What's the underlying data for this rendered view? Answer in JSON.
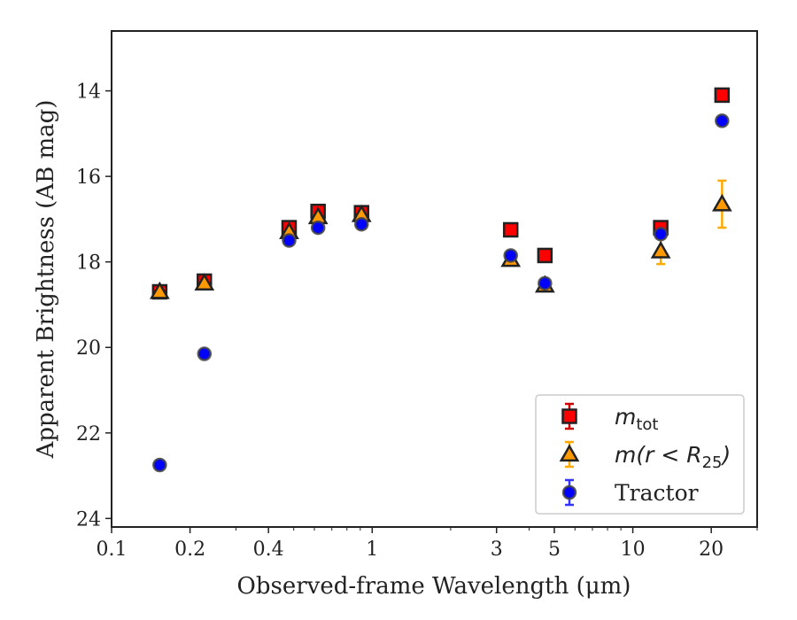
{
  "chart_data": {
    "type": "scatter",
    "xscale": "log",
    "yinverted": true,
    "xlim": [
      0.1,
      30
    ],
    "ylim": [
      12.6,
      24.2
    ],
    "xlabel": "Observed-frame Wavelength (μm)",
    "ylabel": "Apparent Brightness (AB mag)",
    "xticks": [
      {
        "value": 0.1,
        "label": "0.1"
      },
      {
        "value": 0.2,
        "label": "0.2"
      },
      {
        "value": 0.4,
        "label": "0.4"
      },
      {
        "value": 1,
        "label": "1"
      },
      {
        "value": 3,
        "label": "3"
      },
      {
        "value": 5,
        "label": "5"
      },
      {
        "value": 10,
        "label": "10"
      },
      {
        "value": 20,
        "label": "20"
      }
    ],
    "yticks": [
      {
        "value": 14,
        "label": "14"
      },
      {
        "value": 16,
        "label": "16"
      },
      {
        "value": 18,
        "label": "18"
      },
      {
        "value": 20,
        "label": "20"
      },
      {
        "value": 22,
        "label": "22"
      },
      {
        "value": 24,
        "label": "24"
      }
    ],
    "legend_position": "lower-right",
    "series": [
      {
        "name": "m_tot",
        "legend_main": "m",
        "legend_sub": "tot",
        "marker": "square",
        "color": "#ff0000",
        "edge_color": "#222222",
        "errorbar_color": "#cc0000",
        "points": [
          {
            "x": 0.153,
            "y": 18.7,
            "err": 0.06
          },
          {
            "x": 0.227,
            "y": 18.45,
            "err": 0.05
          },
          {
            "x": 0.48,
            "y": 17.2,
            "err": 0.05
          },
          {
            "x": 0.62,
            "y": 16.82,
            "err": 0.05
          },
          {
            "x": 0.91,
            "y": 16.85,
            "err": 0.05
          },
          {
            "x": 3.4,
            "y": 17.25,
            "err": 0.04
          },
          {
            "x": 4.6,
            "y": 17.85,
            "err": 0.04
          },
          {
            "x": 12.8,
            "y": 17.2,
            "err": 0.05
          },
          {
            "x": 22.0,
            "y": 14.1,
            "err": 0.05
          }
        ]
      },
      {
        "name": "m(r < R_25)",
        "legend_main": "m(r < R",
        "legend_sub": "25",
        "legend_tail": ")",
        "marker": "triangle",
        "color": "#ff9900",
        "edge_color": "#222222",
        "errorbar_color": "#ffaa00",
        "points": [
          {
            "x": 0.153,
            "y": 18.7,
            "err": 0.06
          },
          {
            "x": 0.227,
            "y": 18.5,
            "err": 0.05
          },
          {
            "x": 0.48,
            "y": 17.3,
            "err": 0.05
          },
          {
            "x": 0.62,
            "y": 16.95,
            "err": 0.05
          },
          {
            "x": 0.91,
            "y": 16.9,
            "err": 0.05
          },
          {
            "x": 3.4,
            "y": 17.95,
            "err": 0.05
          },
          {
            "x": 4.6,
            "y": 18.55,
            "err": 0.05
          },
          {
            "x": 12.8,
            "y": 17.75,
            "err": 0.3
          },
          {
            "x": 22.0,
            "y": 16.65,
            "err": 0.55
          }
        ]
      },
      {
        "name": "Tractor",
        "legend_main": "Tractor",
        "marker": "circle",
        "color": "#0000ff",
        "edge_color": "#444444",
        "errorbar_color": "#3333ff",
        "points": [
          {
            "x": 0.153,
            "y": 22.75,
            "err": 0.05
          },
          {
            "x": 0.227,
            "y": 20.15,
            "err": 0.05
          },
          {
            "x": 0.48,
            "y": 17.5,
            "err": 0.05
          },
          {
            "x": 0.62,
            "y": 17.2,
            "err": 0.05
          },
          {
            "x": 0.91,
            "y": 17.12,
            "err": 0.05
          },
          {
            "x": 3.4,
            "y": 17.85,
            "err": 0.05
          },
          {
            "x": 4.6,
            "y": 18.5,
            "err": 0.05
          },
          {
            "x": 12.8,
            "y": 17.35,
            "err": 0.05
          },
          {
            "x": 22.0,
            "y": 14.7,
            "err": 0.05
          }
        ]
      }
    ]
  }
}
